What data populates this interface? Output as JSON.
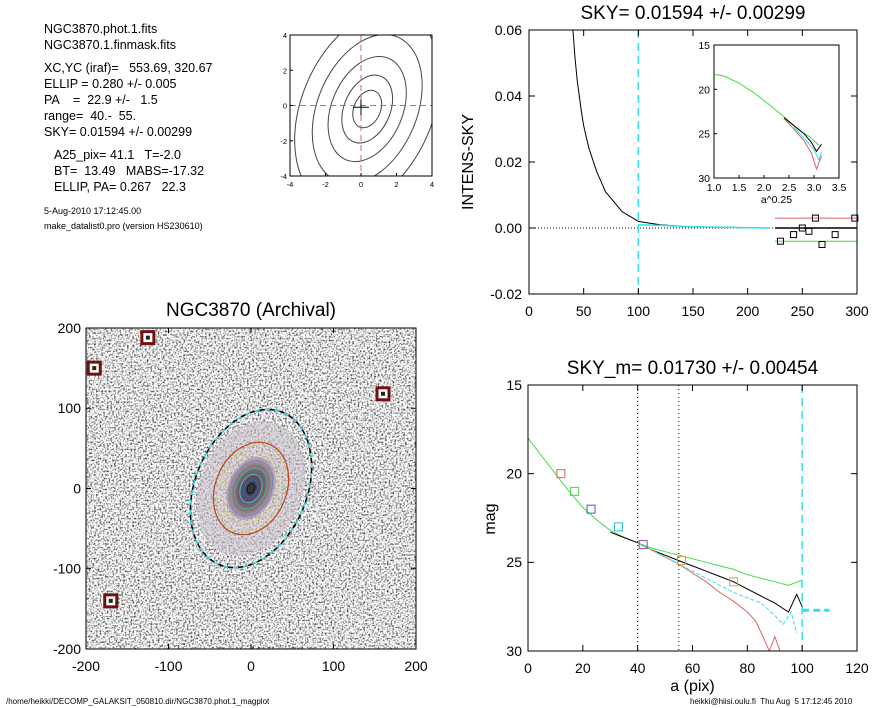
{
  "info": {
    "lines": [
      "NGC3870.phot.1.fits",
      "NGC3870.1.finmask.fits",
      "XC,YC (iraf)=   553.69, 320.67",
      "ELLIP = 0.280 +/- 0.005",
      "PA    =  22.9 +/-   1.5",
      "range=  40.-  55.",
      "SKY= 0.01594 +/- 0.00299",
      "A25_pix= 41.1   T=-2.0",
      "BT=  13.49   MABS=-17.32",
      "ELLIP, PA= 0.267   22.3"
    ],
    "date": "5-Aug-2010 17:12:45.00",
    "program": "make_datalist0.pro (version HS230610)"
  },
  "footer": {
    "left": "/home/heikki/DECOMP_GALAKSIT_050810.dir/NGC3870.phot.1_magplot",
    "right": "heikki@hiisi.oulu.fi  Thu Aug  5 17:12:45 2010"
  },
  "colors": {
    "cyan": "#33e0f0",
    "red": "#e06060",
    "green": "#44dd44",
    "dark_red": "#701010"
  },
  "chart_data": [
    {
      "type": "contour",
      "id": "center-contours",
      "xlim": [
        -4,
        4
      ],
      "ylim": [
        -4,
        4
      ],
      "xticks": [
        -4,
        -2,
        0,
        2,
        4
      ],
      "yticks": [
        -4,
        -2,
        0,
        2,
        4
      ],
      "center": [
        0,
        0
      ],
      "contours": [
        {
          "a": 1.1,
          "b": 0.75,
          "pa": 22.9
        },
        {
          "a": 2.0,
          "b": 1.3,
          "pa": 22.9
        },
        {
          "a": 3.1,
          "b": 2.0,
          "pa": 22.9
        },
        {
          "a": 4.4,
          "b": 2.8,
          "pa": 22.9
        },
        {
          "a": 5.8,
          "b": 3.7,
          "pa": 22.9
        }
      ]
    },
    {
      "type": "line",
      "id": "sky-profile",
      "title": "SKY= 0.01594 +/- 0.00299",
      "xlabel": "",
      "ylabel": "INTENS-SKY",
      "xlim": [
        0,
        300
      ],
      "ylim": [
        -0.02,
        0.06
      ],
      "xticks": [
        0,
        50,
        100,
        150,
        200,
        250,
        300
      ],
      "yticks": [
        "-0.02",
        "0.00",
        "0.02",
        "0.04",
        "0.06"
      ],
      "vline": 100,
      "series": [
        {
          "color": "black",
          "x": [
            40,
            42,
            44,
            46,
            48,
            50,
            52,
            55,
            58,
            62,
            66,
            70,
            75,
            80,
            85,
            90,
            95,
            100,
            110,
            120,
            140,
            160,
            180,
            200,
            220
          ],
          "y": [
            0.061,
            0.052,
            0.045,
            0.04,
            0.035,
            0.031,
            0.028,
            0.024,
            0.021,
            0.017,
            0.014,
            0.011,
            0.009,
            0.007,
            0.005,
            0.004,
            0.003,
            0.002,
            0.0015,
            0.001,
            0.0005,
            0.0003,
            0.0002,
            0.0001,
            0.0
          ]
        },
        {
          "color": "cyan",
          "x": [
            100,
            120,
            140,
            160,
            180,
            200,
            220
          ],
          "y": [
            0.001,
            0.0008,
            0.0005,
            0.0003,
            0.0002,
            0.0001,
            0.0
          ]
        }
      ],
      "sky_lines": [
        {
          "color": "red",
          "x": [
            225,
            300
          ],
          "y": [
            0.003,
            0.003
          ]
        },
        {
          "color": "black",
          "x": [
            225,
            300
          ],
          "y": [
            0.0,
            0.0
          ]
        },
        {
          "color": "green",
          "x": [
            225,
            300
          ],
          "y": [
            -0.004,
            -0.004
          ]
        }
      ],
      "squares": [
        [
          230,
          -0.004
        ],
        [
          242,
          -0.002
        ],
        [
          250,
          0.0
        ],
        [
          256,
          -0.001
        ],
        [
          262,
          0.003
        ],
        [
          268,
          -0.005
        ],
        [
          280,
          -0.002
        ],
        [
          298,
          0.003
        ]
      ],
      "inset": {
        "xlabel": "a^0.25",
        "xlim": [
          1.0,
          3.5
        ],
        "ylim": [
          15,
          30
        ],
        "xticks": [
          "1.0",
          "1.5",
          "2.0",
          "2.5",
          "3.0",
          "3.5"
        ],
        "yticks": [
          "15",
          "20",
          "25",
          "30"
        ],
        "series": [
          {
            "color": "green",
            "x": [
              1.0,
              1.2,
              1.5,
              1.8,
              2.1,
              2.4,
              2.7,
              2.9,
              3.0,
              3.1
            ],
            "y": [
              18.3,
              18.5,
              19.3,
              20.4,
              21.7,
              23.1,
              24.6,
              25.3,
              25.8,
              26.3
            ]
          },
          {
            "color": "black",
            "x": [
              2.4,
              2.6,
              2.8,
              2.95,
              3.05,
              3.15
            ],
            "y": [
              23.2,
              24.1,
              25.0,
              26.0,
              27.0,
              26.2
            ]
          },
          {
            "color": "red",
            "x": [
              2.4,
              2.6,
              2.8,
              2.95,
              3.05,
              3.15
            ],
            "y": [
              23.3,
              24.5,
              25.8,
              27.2,
              29.0,
              27.5
            ]
          },
          {
            "color": "cyan",
            "x": [
              2.6,
              2.8,
              3.0,
              3.1,
              3.15
            ],
            "y": [
              24.3,
              25.5,
              26.8,
              28.0,
              27.0
            ]
          }
        ]
      }
    },
    {
      "type": "image",
      "id": "galaxy-image",
      "title": "NGC3870 (Archival)",
      "xlim": [
        -200,
        200
      ],
      "ylim": [
        -200,
        200
      ],
      "xticks": [
        -200,
        -100,
        0,
        100,
        200
      ],
      "yticks": [
        -200,
        -100,
        0,
        100,
        200
      ],
      "ellipse": {
        "a": 100,
        "b": 72,
        "pa": 22.9
      },
      "contours": [
        {
          "a": 55
        },
        {
          "a": 45
        },
        {
          "a": 35
        },
        {
          "a": 26
        },
        {
          "a": 18
        },
        {
          "a": 11
        },
        {
          "a": 6
        }
      ],
      "masked_stars": [
        [
          -190,
          150
        ],
        [
          -125,
          188
        ],
        [
          160,
          118
        ],
        [
          -170,
          -140
        ]
      ]
    },
    {
      "type": "line",
      "id": "mag-profile",
      "title": "SKY_m=  0.01730 +/- 0.00454",
      "xlabel": "a (pix)",
      "ylabel": "mag",
      "xlim": [
        0,
        120
      ],
      "ylim": [
        30,
        15
      ],
      "xticks": [
        0,
        20,
        40,
        60,
        80,
        100,
        120
      ],
      "yticks": [
        15,
        20,
        25,
        30
      ],
      "vlines_dotted": [
        40,
        55
      ],
      "vline_cyan": 100,
      "series": [
        {
          "color": "green",
          "x": [
            0,
            5,
            10,
            15,
            20,
            25,
            30,
            35,
            40,
            45,
            50,
            55,
            60,
            65,
            70,
            75,
            80,
            85,
            90,
            95,
            100
          ],
          "y": [
            18.0,
            19.0,
            20.0,
            21.0,
            21.9,
            22.6,
            23.2,
            23.6,
            23.9,
            24.2,
            24.4,
            24.6,
            24.8,
            25.0,
            25.2,
            25.4,
            25.7,
            25.9,
            26.1,
            26.3,
            26.0
          ]
        },
        {
          "color": "black",
          "x": [
            30,
            35,
            40,
            45,
            50,
            55,
            60,
            65,
            70,
            75,
            80,
            85,
            90,
            95,
            98,
            100
          ],
          "y": [
            23.3,
            23.6,
            23.9,
            24.3,
            24.6,
            24.9,
            25.2,
            25.5,
            25.8,
            26.1,
            26.5,
            26.9,
            27.3,
            27.8,
            26.8,
            27.5
          ]
        },
        {
          "color": "red",
          "x": [
            40,
            45,
            50,
            55,
            60,
            65,
            70,
            75,
            80,
            83,
            86,
            88,
            90,
            92
          ],
          "y": [
            23.9,
            24.3,
            24.7,
            25.1,
            25.6,
            26.1,
            26.7,
            27.2,
            27.8,
            28.3,
            29.3,
            30.0,
            29.2,
            30.0
          ]
        },
        {
          "color": "cyan",
          "x": [
            40,
            45,
            50,
            55,
            60,
            65,
            70,
            75,
            80,
            85,
            90,
            93,
            96,
            98
          ],
          "y": [
            23.9,
            24.3,
            24.7,
            25.1,
            25.5,
            25.9,
            26.3,
            26.7,
            27.0,
            27.3,
            28.0,
            28.5,
            27.8,
            29.0
          ]
        }
      ],
      "sky_mark": {
        "color": "cyan",
        "x": [
          100,
          110
        ],
        "y": 27.7
      },
      "squares": [
        {
          "x": 12,
          "y": 20.0,
          "color": "#e06060"
        },
        {
          "x": 17,
          "y": 21.0,
          "color": "#44dd44"
        },
        {
          "x": 23,
          "y": 22.0,
          "color": "#4060d0"
        },
        {
          "x": 33,
          "y": 23.0,
          "color": "#30c0d0"
        },
        {
          "x": 42,
          "y": 24.0,
          "color": "#a040a0"
        },
        {
          "x": 56,
          "y": 24.9,
          "color": "#e0a040"
        },
        {
          "x": 75,
          "y": 26.1,
          "color": "#e0a040"
        }
      ]
    }
  ]
}
